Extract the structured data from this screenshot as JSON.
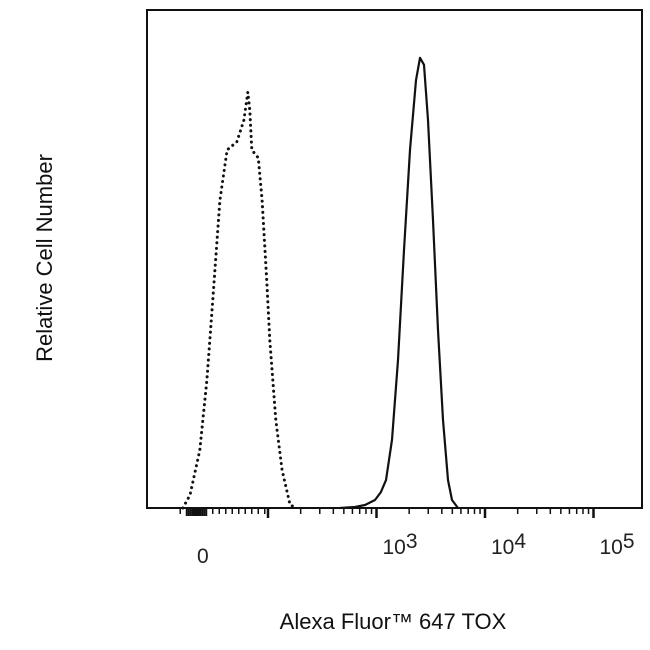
{
  "chart_data": {
    "type": "line",
    "title": "",
    "xlabel": "Alexa Fluor™ 647 TOX",
    "ylabel": "Relative Cell Number",
    "x_scale": "biexponential (linear near 0, log above 10^2)",
    "xlim": [
      -40,
      150000
    ],
    "ylim": [
      0,
      100
    ],
    "grid": false,
    "x_ticks": [
      {
        "value": 0,
        "base": "0",
        "exp": ""
      },
      {
        "value": 1000,
        "base": "10",
        "exp": "3"
      },
      {
        "value": 10000,
        "base": "10",
        "exp": "4"
      },
      {
        "value": 100000,
        "base": "10",
        "exp": "5"
      }
    ],
    "series": [
      {
        "style": "dotted",
        "color": "#111111",
        "x": [
          -31,
          -20,
          -5,
          6,
          15,
          26,
          37,
          52,
          63,
          69,
          72,
          75,
          85,
          91,
          98,
          104,
          118,
          135,
          160,
          184
        ],
        "y": [
          0,
          2.6,
          11.6,
          25.7,
          41.8,
          61.8,
          71.9,
          73.5,
          77.9,
          83.5,
          79.9,
          71.9,
          70.3,
          61.8,
          45.8,
          33.7,
          17.7,
          7.6,
          0.6,
          0
        ]
      },
      {
        "style": "solid",
        "color": "#111111",
        "x": [
          461,
          634,
          783,
          968,
          1099,
          1224,
          1390,
          1578,
          1792,
          2036,
          2312,
          2517,
          2740,
          2985,
          3320,
          3690,
          4100,
          4560,
          4965,
          5640
        ],
        "y": [
          0,
          0.2,
          0.6,
          1.6,
          3.2,
          5.6,
          13.7,
          29.7,
          51.8,
          71.9,
          85.9,
          90.4,
          89,
          77.9,
          57.8,
          35.7,
          17.7,
          5.6,
          1.6,
          0
        ]
      }
    ]
  }
}
